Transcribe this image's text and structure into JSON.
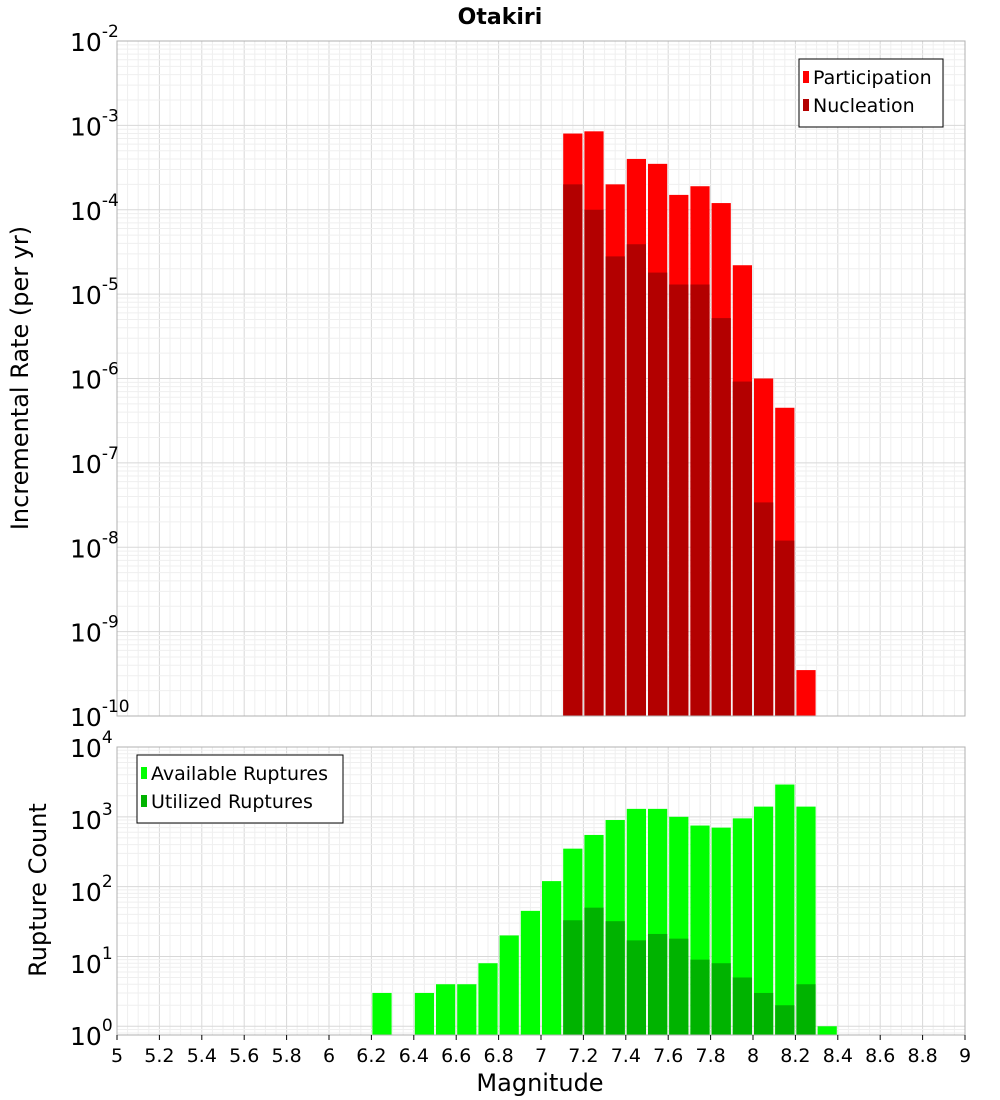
{
  "chart_data": [
    {
      "type": "bar",
      "title": "Otakiri",
      "xlabel": "Magnitude",
      "ylabel": "Incremental Rate (per yr)",
      "yscale": "log",
      "ylim": [
        1e-10,
        0.01
      ],
      "xlim": [
        5,
        9
      ],
      "grid": true,
      "legend_position": "top-right",
      "x": [
        7.15,
        7.25,
        7.35,
        7.45,
        7.55,
        7.65,
        7.75,
        7.85,
        7.95,
        8.05,
        8.15,
        8.25
      ],
      "series": [
        {
          "name": "Participation",
          "color": "#ff0000",
          "values": [
            0.0008,
            0.00085,
            0.0002,
            0.0004,
            0.00035,
            0.00015,
            0.00019,
            0.00012,
            2.2e-05,
            1e-06,
            4.5e-07,
            3.5e-10
          ]
        },
        {
          "name": "Nucleation",
          "color": "#b30000",
          "values": [
            0.0002,
            0.0001,
            2.8e-05,
            3.9e-05,
            1.8e-05,
            1.3e-05,
            1.3e-05,
            5.2e-06,
            9.2e-07,
            3.4e-08,
            1.2e-08,
            null
          ]
        }
      ]
    },
    {
      "type": "bar",
      "xlabel": "Magnitude",
      "ylabel": "Rupture Count",
      "yscale": "log",
      "ylim": [
        0.75,
        10000
      ],
      "xlim": [
        5,
        9
      ],
      "grid": true,
      "legend_position": "top-left",
      "x": [
        6.25,
        6.45,
        6.55,
        6.65,
        6.75,
        6.85,
        6.95,
        7.05,
        7.15,
        7.25,
        7.35,
        7.45,
        7.55,
        7.65,
        7.75,
        7.85,
        7.95,
        8.05,
        8.15,
        8.25,
        8.35
      ],
      "series": [
        {
          "name": "Available Ruptures",
          "color": "#00ff00",
          "values": [
            3,
            3,
            4,
            4,
            8,
            20,
            45,
            120,
            350,
            550,
            900,
            1300,
            1300,
            1000,
            750,
            700,
            950,
            1400,
            2900,
            1400,
            1
          ]
        },
        {
          "name": "Utilized Ruptures",
          "color": "#00b300",
          "values": [
            null,
            null,
            null,
            null,
            null,
            null,
            null,
            null,
            33,
            50,
            32,
            17,
            21,
            18,
            9,
            8,
            5,
            3,
            2,
            4,
            null
          ]
        }
      ]
    }
  ],
  "x_ticks": [
    "5",
    "5.2",
    "5.4",
    "5.6",
    "5.8",
    "6",
    "6.2",
    "6.4",
    "6.6",
    "6.8",
    "7",
    "7.2",
    "7.4",
    "7.6",
    "7.8",
    "8",
    "8.2",
    "8.4",
    "8.6",
    "8.8",
    "9"
  ],
  "top_y_ticks": [
    {
      "base": "10",
      "exp": "-2"
    },
    {
      "base": "10",
      "exp": "-3"
    },
    {
      "base": "10",
      "exp": "-4"
    },
    {
      "base": "10",
      "exp": "-5"
    },
    {
      "base": "10",
      "exp": "-6"
    },
    {
      "base": "10",
      "exp": "-7"
    },
    {
      "base": "10",
      "exp": "-8"
    },
    {
      "base": "10",
      "exp": "-9"
    },
    {
      "base": "10",
      "exp": "-10"
    }
  ],
  "bottom_y_ticks": [
    {
      "base": "10",
      "exp": "4"
    },
    {
      "base": "10",
      "exp": "3"
    },
    {
      "base": "10",
      "exp": "2"
    },
    {
      "base": "10",
      "exp": "1"
    },
    {
      "base": "10",
      "exp": "0"
    }
  ]
}
